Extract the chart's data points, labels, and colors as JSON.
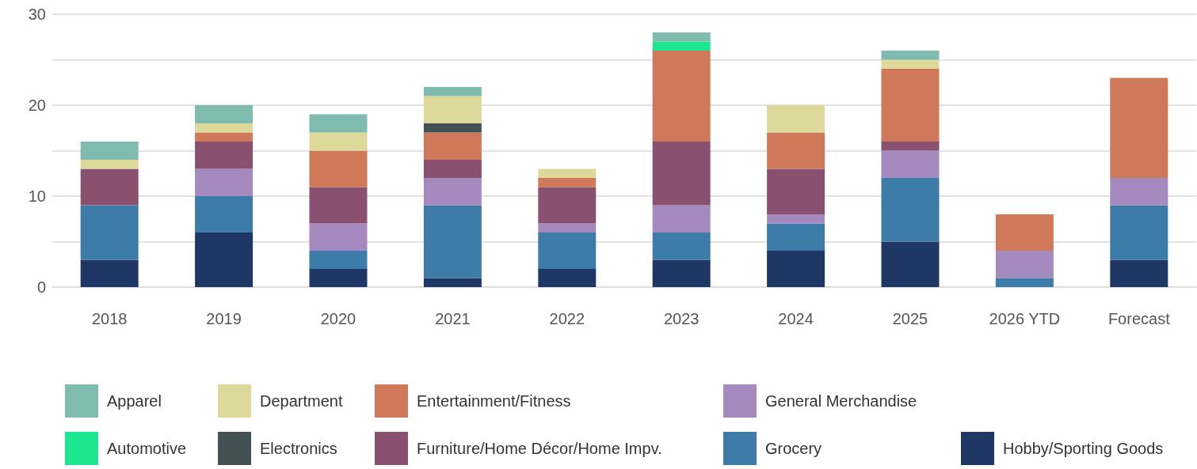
{
  "chart_data": {
    "type": "bar",
    "stacked": true,
    "categories": [
      "2018",
      "2019",
      "2020",
      "2021",
      "2022",
      "2023",
      "2024",
      "2025",
      "2026 YTD",
      "Forecast"
    ],
    "series": [
      {
        "name": "Hobby/Sporting Goods",
        "color": "#1f3764",
        "values": [
          3,
          6,
          2,
          1,
          2,
          3,
          4,
          5,
          null,
          3
        ]
      },
      {
        "name": "Grocery",
        "color": "#3d7ba8",
        "values": [
          6,
          4,
          2,
          8,
          4,
          3,
          3,
          7,
          1,
          6
        ]
      },
      {
        "name": "General Merchandise",
        "color": "#a48abf",
        "values": [
          null,
          3,
          3,
          3,
          1,
          3,
          1,
          3,
          3,
          3
        ]
      },
      {
        "name": "Furniture/Home Décor/Home Impv.",
        "color": "#8a5070",
        "values": [
          4,
          3,
          4,
          2,
          4,
          7,
          5,
          1,
          null,
          null
        ]
      },
      {
        "name": "Entertainment/Fitness",
        "color": "#d0785a",
        "values": [
          null,
          1,
          4,
          3,
          1,
          10,
          4,
          8,
          4,
          11
        ]
      },
      {
        "name": "Electronics",
        "color": "#435155",
        "values": [
          null,
          null,
          null,
          1,
          null,
          null,
          null,
          null,
          null,
          null
        ]
      },
      {
        "name": "Department",
        "color": "#dcd99a",
        "values": [
          1,
          1,
          2,
          3,
          1,
          null,
          3,
          1,
          null,
          null
        ]
      },
      {
        "name": "Automotive",
        "color": "#1ce68f",
        "values": [
          null,
          null,
          null,
          null,
          null,
          1,
          null,
          null,
          null,
          null
        ]
      },
      {
        "name": "Apparel",
        "color": "#7fbcaf",
        "values": [
          2,
          2,
          2,
          1,
          null,
          1,
          null,
          1,
          null,
          null
        ]
      }
    ],
    "ylim": [
      0,
      30
    ],
    "yticks": [
      0,
      {
        "value": 5,
        "label": null
      },
      10,
      {
        "value": 15,
        "label": null
      },
      20,
      {
        "value": 25,
        "label": null
      },
      30
    ],
    "grid": "y",
    "legend": "bottom"
  }
}
